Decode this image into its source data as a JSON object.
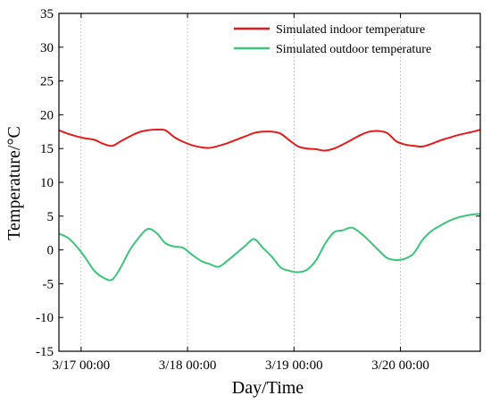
{
  "chart_data": {
    "type": "line",
    "xlabel": "Day/Time",
    "ylabel": "Temperature/°C",
    "xlim": [
      "3/16 19:00",
      "3/20 18:00"
    ],
    "ylim": [
      -15,
      35
    ],
    "yticks": [
      -15,
      -10,
      -5,
      0,
      5,
      10,
      15,
      20,
      25,
      30,
      35
    ],
    "xticks": [
      "3/17 00:00",
      "3/18 00:00",
      "3/19 00:00",
      "3/20 00:00"
    ],
    "grid": "vertical dashed at x ticks",
    "legend_position": "top-right",
    "series": [
      {
        "name": "Simulated indoor temperature",
        "color": "#e41a1c",
        "x": [
          "3/16 19:00",
          "3/16 21:00",
          "3/16 23:00",
          "3/17 01:00",
          "3/17 03:00",
          "3/17 05:00",
          "3/17 07:00",
          "3/17 09:00",
          "3/17 11:00",
          "3/17 13:00",
          "3/17 15:00",
          "3/17 17:00",
          "3/17 19:00",
          "3/17 21:00",
          "3/17 23:00",
          "3/18 01:00",
          "3/18 03:00",
          "3/18 05:00",
          "3/18 07:00",
          "3/18 09:00",
          "3/18 11:00",
          "3/18 13:00",
          "3/18 15:00",
          "3/18 17:00",
          "3/18 19:00",
          "3/18 21:00",
          "3/18 23:00",
          "3/19 01:00",
          "3/19 03:00",
          "3/19 05:00",
          "3/19 07:00",
          "3/19 09:00",
          "3/19 11:00",
          "3/19 13:00",
          "3/19 15:00",
          "3/19 17:00",
          "3/19 19:00",
          "3/19 21:00",
          "3/19 23:00",
          "3/20 01:00",
          "3/20 03:00",
          "3/20 05:00",
          "3/20 07:00",
          "3/20 09:00",
          "3/20 11:00",
          "3/20 13:00",
          "3/20 15:00",
          "3/20 17:00",
          "3/20 18:00"
        ],
        "values": [
          17.7,
          17.2,
          16.8,
          16.5,
          16.3,
          15.7,
          15.4,
          16.1,
          16.8,
          17.4,
          17.7,
          17.8,
          17.7,
          16.7,
          16.0,
          15.5,
          15.2,
          15.1,
          15.4,
          15.8,
          16.3,
          16.8,
          17.3,
          17.5,
          17.5,
          17.2,
          16.2,
          15.3,
          15.0,
          14.9,
          14.7,
          15.0,
          15.6,
          16.3,
          17.0,
          17.5,
          17.6,
          17.3,
          16.1,
          15.6,
          15.4,
          15.3,
          15.7,
          16.2,
          16.6,
          17.0,
          17.3,
          17.6,
          17.8
        ]
      },
      {
        "name": "Simulated outdoor temperature",
        "color": "#3cc57a",
        "x": [
          "3/16 19:00",
          "3/16 21:00",
          "3/16 23:00",
          "3/17 01:00",
          "3/17 03:00",
          "3/17 05:00",
          "3/17 07:00",
          "3/17 09:00",
          "3/17 11:00",
          "3/17 13:00",
          "3/17 15:00",
          "3/17 17:00",
          "3/17 19:00",
          "3/17 21:00",
          "3/17 23:00",
          "3/18 01:00",
          "3/18 03:00",
          "3/18 05:00",
          "3/18 07:00",
          "3/18 09:00",
          "3/18 11:00",
          "3/18 13:00",
          "3/18 15:00",
          "3/18 17:00",
          "3/18 19:00",
          "3/18 21:00",
          "3/18 23:00",
          "3/19 01:00",
          "3/19 03:00",
          "3/19 05:00",
          "3/19 07:00",
          "3/19 09:00",
          "3/19 11:00",
          "3/19 13:00",
          "3/19 15:00",
          "3/19 17:00",
          "3/19 19:00",
          "3/19 21:00",
          "3/19 23:00",
          "3/20 01:00",
          "3/20 03:00",
          "3/20 05:00",
          "3/20 07:00",
          "3/20 09:00",
          "3/20 11:00",
          "3/20 13:00",
          "3/20 15:00",
          "3/20 17:00",
          "3/20 18:00"
        ],
        "values": [
          2.4,
          1.8,
          0.5,
          -1.2,
          -3.1,
          -4.1,
          -4.4,
          -2.5,
          0.0,
          1.8,
          3.1,
          2.5,
          1.0,
          0.5,
          0.3,
          -0.7,
          -1.6,
          -2.1,
          -2.5,
          -1.6,
          -0.5,
          0.6,
          1.6,
          0.3,
          -1.0,
          -2.6,
          -3.1,
          -3.3,
          -2.9,
          -1.5,
          0.9,
          2.6,
          2.9,
          3.3,
          2.5,
          1.3,
          0.0,
          -1.2,
          -1.5,
          -1.3,
          -0.5,
          1.5,
          2.8,
          3.6,
          4.3,
          4.8,
          5.1,
          5.3,
          5.3
        ]
      }
    ]
  }
}
